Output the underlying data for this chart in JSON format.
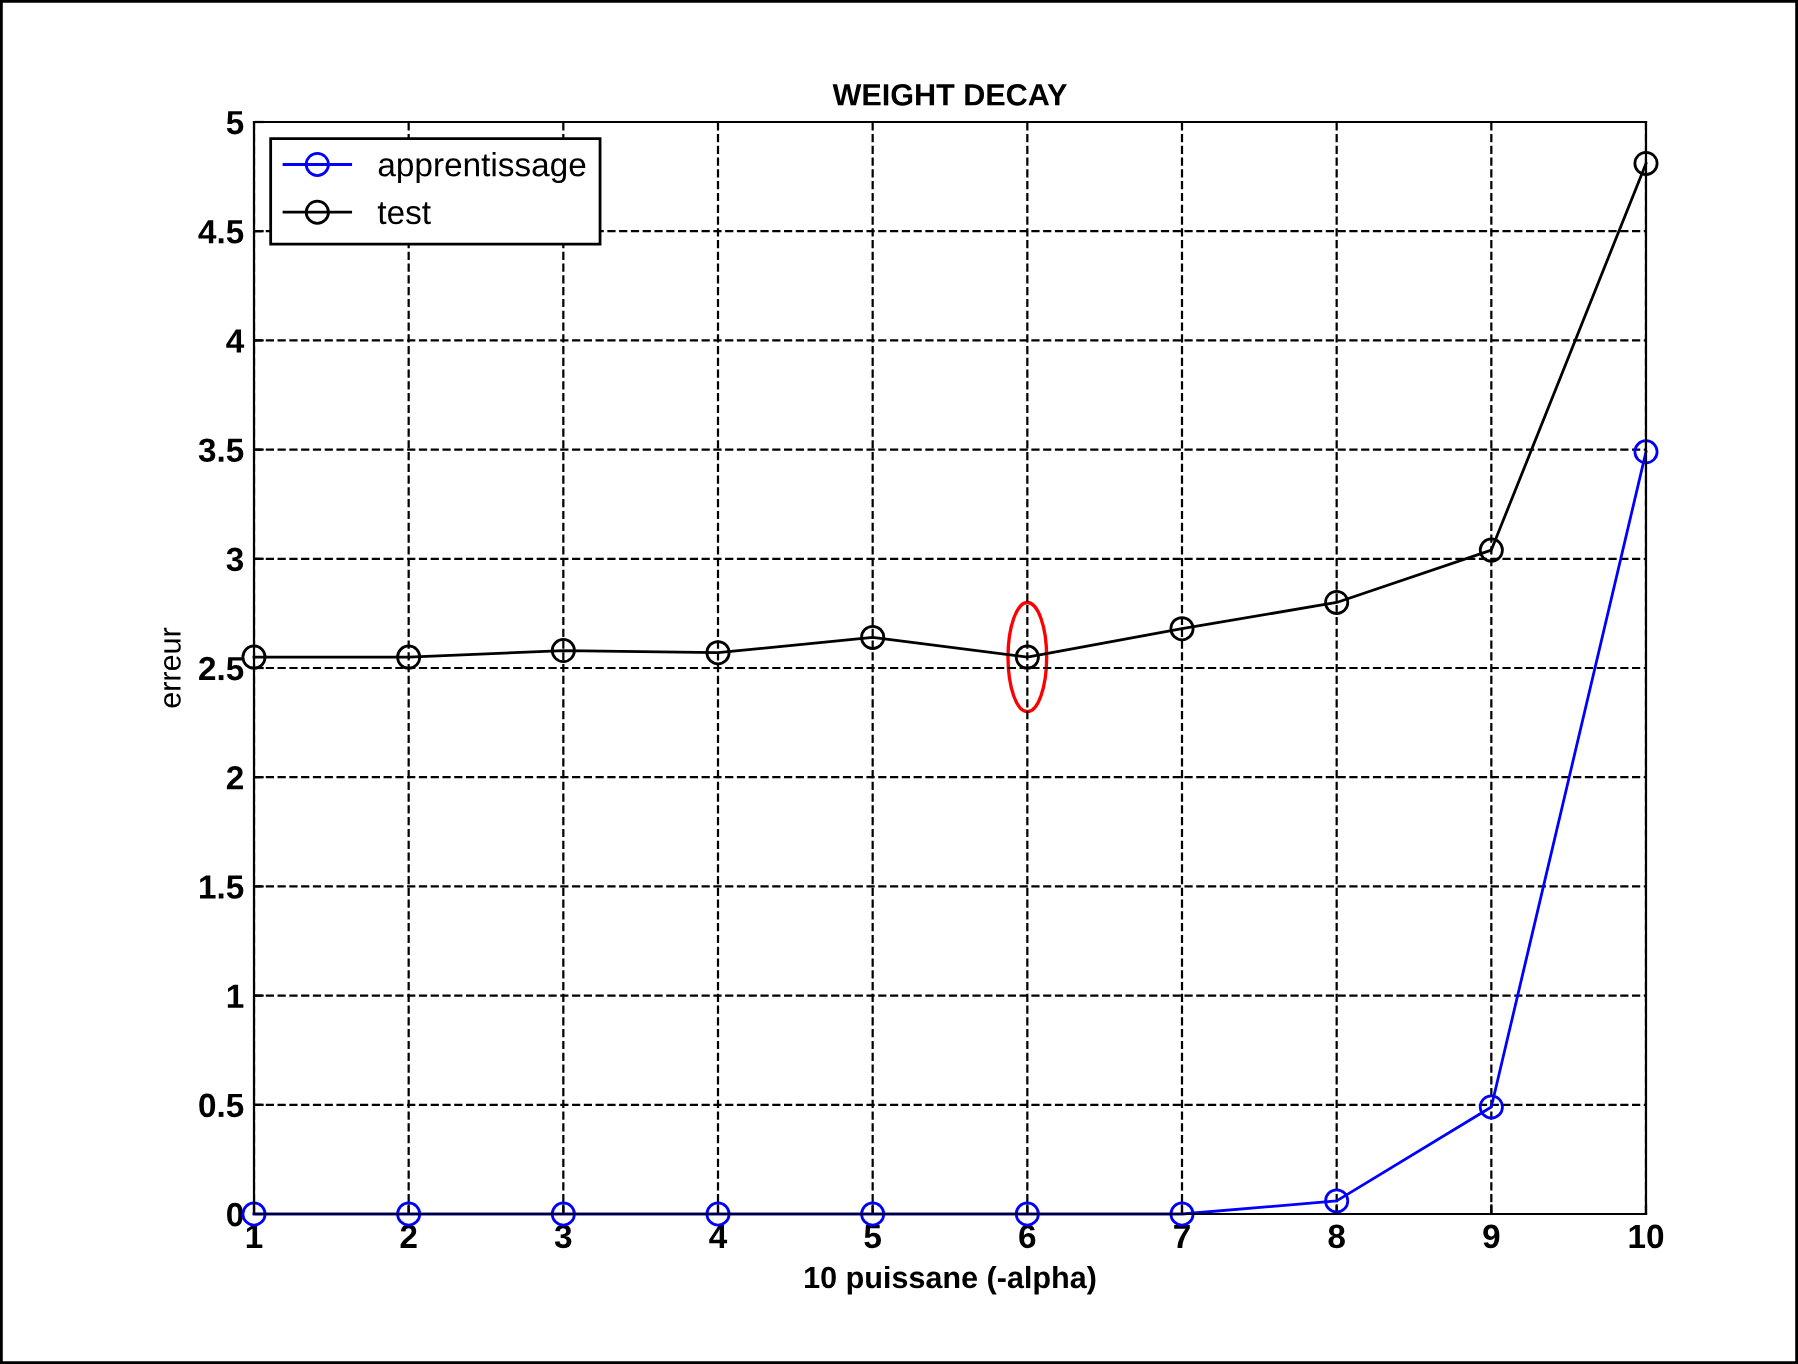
{
  "chart_data": {
    "type": "line",
    "title": "WEIGHT DECAY",
    "xlabel": "10 puissane (-alpha)",
    "ylabel": "erreur",
    "x": [
      1,
      2,
      3,
      4,
      5,
      6,
      7,
      8,
      9,
      10
    ],
    "series": [
      {
        "name": "apprentissage",
        "color": "#0000ff",
        "values": [
          0,
          0,
          0,
          0,
          0,
          0,
          0,
          0.06,
          0.49,
          3.49
        ]
      },
      {
        "name": "test",
        "color": "#000000",
        "values": [
          2.55,
          2.55,
          2.58,
          2.57,
          2.64,
          2.55,
          2.68,
          2.8,
          3.04,
          4.81
        ]
      }
    ],
    "xlim": [
      1,
      10
    ],
    "xticks": [
      1,
      2,
      3,
      4,
      5,
      6,
      7,
      8,
      9,
      10
    ],
    "ylim": [
      0,
      5
    ],
    "yticks": [
      0,
      0.5,
      1,
      1.5,
      2,
      2.5,
      3,
      3.5,
      4,
      4.5,
      5
    ],
    "grid": true,
    "legend": "top left",
    "marker": "circle",
    "line_style": "solid"
  }
}
